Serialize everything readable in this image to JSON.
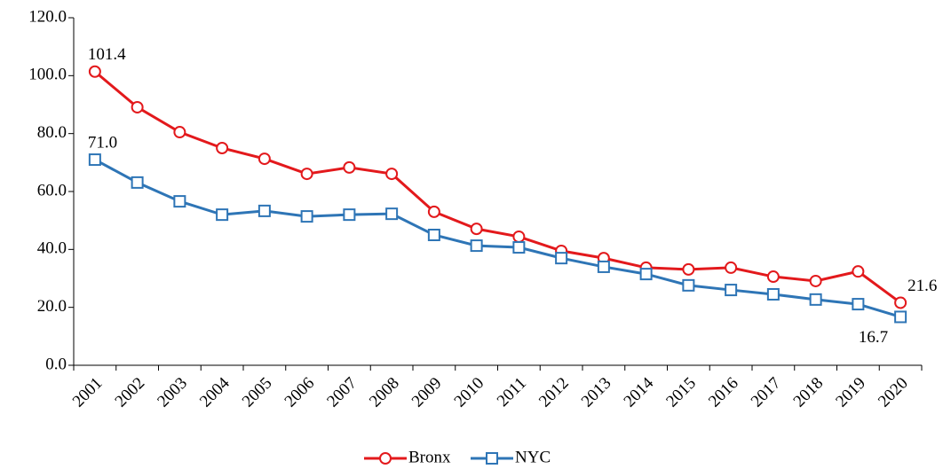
{
  "chart_data": {
    "type": "line",
    "categories": [
      "2001",
      "2002",
      "2003",
      "2004",
      "2005",
      "2006",
      "2007",
      "2008",
      "2009",
      "2010",
      "2011",
      "2012",
      "2013",
      "2014",
      "2015",
      "2016",
      "2017",
      "2018",
      "2019",
      "2020"
    ],
    "series": [
      {
        "name": "Bronx",
        "color": "#e3191c",
        "marker": "circle",
        "values": [
          101.4,
          89.1,
          80.5,
          75.0,
          71.3,
          66.1,
          68.3,
          66.1,
          53.0,
          47.1,
          44.4,
          39.5,
          37.0,
          33.7,
          33.1,
          33.7,
          30.6,
          29.1,
          32.4,
          21.6
        ],
        "value_labels": [
          "101.4",
          null,
          null,
          null,
          null,
          null,
          null,
          null,
          null,
          null,
          null,
          null,
          null,
          null,
          null,
          null,
          null,
          null,
          null,
          "21.6"
        ]
      },
      {
        "name": "NYC",
        "color": "#2e75b6",
        "marker": "square",
        "values": [
          71.0,
          63.1,
          56.6,
          52.0,
          53.3,
          51.4,
          52.0,
          52.3,
          45.0,
          41.3,
          40.7,
          37.0,
          34.0,
          31.5,
          27.6,
          26.0,
          24.5,
          22.7,
          21.1,
          16.7
        ],
        "value_labels": [
          "71.0",
          null,
          null,
          null,
          null,
          null,
          null,
          null,
          null,
          null,
          null,
          null,
          null,
          null,
          null,
          null,
          null,
          null,
          null,
          "16.7"
        ]
      }
    ],
    "ylim": [
      0,
      120
    ],
    "yticks": [
      {
        "value": 0,
        "label": "0.0"
      },
      {
        "value": 20,
        "label": "20.0"
      },
      {
        "value": 40,
        "label": "40.0"
      },
      {
        "value": 60,
        "label": "60.0"
      },
      {
        "value": 80,
        "label": "80.0"
      },
      {
        "value": 100,
        "label": "100.0"
      },
      {
        "value": 120,
        "label": "120.0"
      }
    ],
    "legend": "bottom"
  }
}
